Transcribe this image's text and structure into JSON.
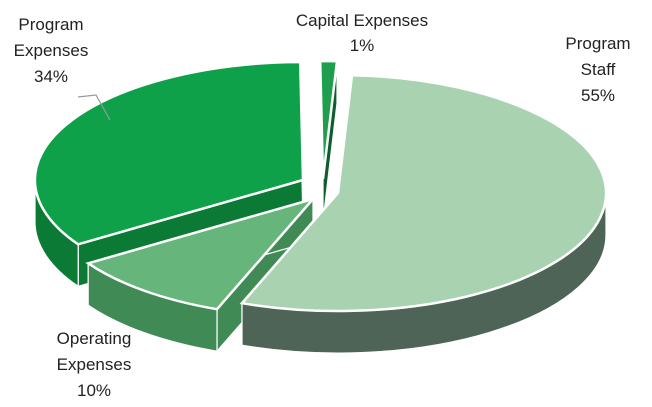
{
  "chart_data": {
    "type": "pie",
    "style": "3d-exploded",
    "title": "",
    "slices": [
      {
        "name": "Program Staff",
        "label_lines": [
          "Program",
          "Staff"
        ],
        "value_label": "55%",
        "value": 55,
        "color": "#a9d2b1",
        "side_color": "#4e6456"
      },
      {
        "name": "Operating Expenses",
        "label_lines": [
          "Operating",
          "Expenses"
        ],
        "value_label": "10%",
        "value": 10,
        "color": "#66b67b",
        "side_color": "#3f8a55"
      },
      {
        "name": "Program Expenses",
        "label_lines": [
          "Program",
          "Expenses"
        ],
        "value_label": "34%",
        "value": 34,
        "color": "#0fa04a",
        "side_color": "#0b7a35"
      },
      {
        "name": "Capital Expenses",
        "label_lines": [
          "Capital Expenses"
        ],
        "value_label": "1%",
        "value": 1,
        "color": "#1f9f4d",
        "side_color": "#0c5e2a"
      }
    ]
  }
}
